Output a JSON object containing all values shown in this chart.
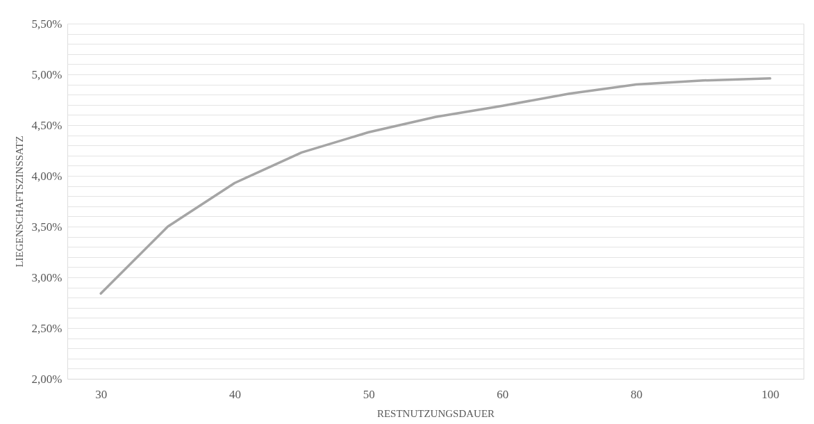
{
  "chart_data": {
    "type": "line",
    "xlabel": "RESTNUTZUNGSDAUER",
    "ylabel": "LIEGENSCHAFTSZINSSATZ",
    "categories": [
      "30",
      null,
      "40",
      null,
      "50",
      null,
      "60",
      null,
      "80",
      null,
      "100"
    ],
    "series": [
      {
        "color": "#a5a5a5",
        "values": [
          2.84,
          3.5,
          3.93,
          4.23,
          4.43,
          4.58,
          4.69,
          4.81,
          4.9,
          4.94,
          4.96
        ]
      }
    ],
    "ylim": [
      2.0,
      5.5
    ],
    "yticks": [
      {
        "value": 2.0,
        "label": "2,00%"
      },
      {
        "value": 2.1,
        "label": null
      },
      {
        "value": 2.2,
        "label": null
      },
      {
        "value": 2.3,
        "label": null
      },
      {
        "value": 2.4,
        "label": null
      },
      {
        "value": 2.5,
        "label": "2,50%"
      },
      {
        "value": 2.6,
        "label": null
      },
      {
        "value": 2.7,
        "label": null
      },
      {
        "value": 2.8,
        "label": null
      },
      {
        "value": 2.9,
        "label": null
      },
      {
        "value": 3.0,
        "label": "3,00%"
      },
      {
        "value": 3.1,
        "label": null
      },
      {
        "value": 3.2,
        "label": null
      },
      {
        "value": 3.3,
        "label": null
      },
      {
        "value": 3.4,
        "label": null
      },
      {
        "value": 3.5,
        "label": "3,50%"
      },
      {
        "value": 3.6,
        "label": null
      },
      {
        "value": 3.7,
        "label": null
      },
      {
        "value": 3.8,
        "label": null
      },
      {
        "value": 3.9,
        "label": null
      },
      {
        "value": 4.0,
        "label": "4,00%"
      },
      {
        "value": 4.1,
        "label": null
      },
      {
        "value": 4.2,
        "label": null
      },
      {
        "value": 4.3,
        "label": null
      },
      {
        "value": 4.4,
        "label": null
      },
      {
        "value": 4.5,
        "label": "4,50%"
      },
      {
        "value": 4.6,
        "label": null
      },
      {
        "value": 4.7,
        "label": null
      },
      {
        "value": 4.8,
        "label": null
      },
      {
        "value": 4.9,
        "label": null
      },
      {
        "value": 5.0,
        "label": "5,00%"
      },
      {
        "value": 5.1,
        "label": null
      },
      {
        "value": 5.2,
        "label": null
      },
      {
        "value": 5.3,
        "label": null
      },
      {
        "value": 5.4,
        "label": null
      },
      {
        "value": 5.5,
        "label": "5,50%"
      }
    ],
    "grid": "y",
    "marker": "none",
    "line_style": "solid"
  }
}
